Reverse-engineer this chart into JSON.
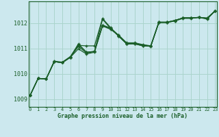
{
  "title": "Graphe pression niveau de la mer (hPa)",
  "bg_color": "#cce8ee",
  "grid_color": "#aad4cc",
  "line_color": "#1a5e28",
  "xlim": [
    -0.2,
    23.2
  ],
  "ylim": [
    1008.7,
    1012.85
  ],
  "yticks": [
    1009,
    1010,
    1011,
    1012
  ],
  "xticks": [
    0,
    1,
    2,
    3,
    4,
    5,
    6,
    7,
    8,
    9,
    10,
    11,
    12,
    13,
    14,
    15,
    16,
    17,
    18,
    19,
    20,
    21,
    22,
    23
  ],
  "series": [
    [
      1009.15,
      1009.82,
      1009.8,
      1010.48,
      1010.44,
      1010.65,
      1011.08,
      1010.82,
      1010.88,
      1012.15,
      1011.78,
      1011.48,
      1011.18,
      1011.18,
      1011.1,
      1011.08,
      1012.02,
      1012.02,
      1012.08,
      1012.18,
      1012.18,
      1012.22,
      1012.18,
      1012.48
    ],
    [
      1009.15,
      1009.82,
      1009.8,
      1010.48,
      1010.44,
      1010.65,
      1011.12,
      1011.1,
      1011.1,
      1012.18,
      1011.82,
      1011.48,
      1011.18,
      1011.18,
      1011.1,
      1011.1,
      1012.02,
      1012.02,
      1012.08,
      1012.2,
      1012.2,
      1012.22,
      1012.18,
      1012.48
    ],
    [
      1009.15,
      1009.82,
      1009.8,
      1010.48,
      1010.44,
      1010.65,
      1010.98,
      1010.78,
      1010.85,
      1011.88,
      1011.75,
      1011.52,
      1011.22,
      1011.22,
      1011.15,
      1011.1,
      1012.03,
      1012.03,
      1012.1,
      1012.2,
      1012.2,
      1012.22,
      1012.2,
      1012.48
    ],
    [
      1009.15,
      1009.82,
      1009.8,
      1010.48,
      1010.44,
      1010.65,
      1011.18,
      1010.85,
      1010.88,
      1011.92,
      1011.8,
      1011.52,
      1011.2,
      1011.2,
      1011.12,
      1011.1,
      1012.03,
      1012.03,
      1012.1,
      1012.2,
      1012.2,
      1012.22,
      1012.18,
      1012.48
    ],
    [
      1009.15,
      1009.82,
      1009.8,
      1010.5,
      1010.46,
      1010.68,
      1011.15,
      1010.85,
      1010.88,
      1011.9,
      1011.78,
      1011.5,
      1011.18,
      1011.2,
      1011.12,
      1011.1,
      1012.03,
      1012.03,
      1012.1,
      1012.2,
      1012.2,
      1012.22,
      1012.15,
      1012.48
    ]
  ]
}
